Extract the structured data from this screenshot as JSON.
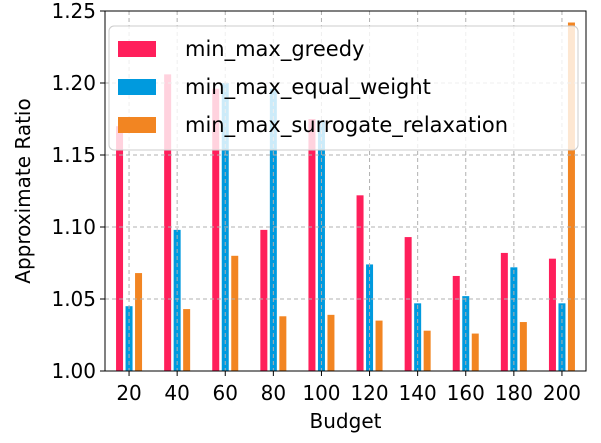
{
  "chart_data": {
    "type": "bar",
    "categories": [
      "20",
      "40",
      "60",
      "80",
      "100",
      "120",
      "140",
      "160",
      "180",
      "200"
    ],
    "series": [
      {
        "name": "min_max_greedy",
        "color": "#ff1f5b",
        "values": [
          1.17,
          1.206,
          1.196,
          1.098,
          1.175,
          1.122,
          1.093,
          1.066,
          1.082,
          1.078
        ]
      },
      {
        "name": "min_max_equal_weight",
        "color": "#009ade",
        "values": [
          1.045,
          1.098,
          1.2,
          1.196,
          1.174,
          1.074,
          1.047,
          1.052,
          1.072,
          1.047
        ]
      },
      {
        "name": "min_max_surrogate_relaxation",
        "color": "#f28522",
        "values": [
          1.068,
          1.043,
          1.08,
          1.038,
          1.039,
          1.035,
          1.028,
          1.026,
          1.034,
          1.242
        ]
      }
    ],
    "xlabel": "Budget",
    "ylabel": "Approximate Ratio",
    "ylim": [
      1.0,
      1.25
    ],
    "yticks": [
      "1.00",
      "1.05",
      "1.10",
      "1.15",
      "1.20",
      "1.25"
    ],
    "grid": true,
    "legend_position": "top-left"
  }
}
